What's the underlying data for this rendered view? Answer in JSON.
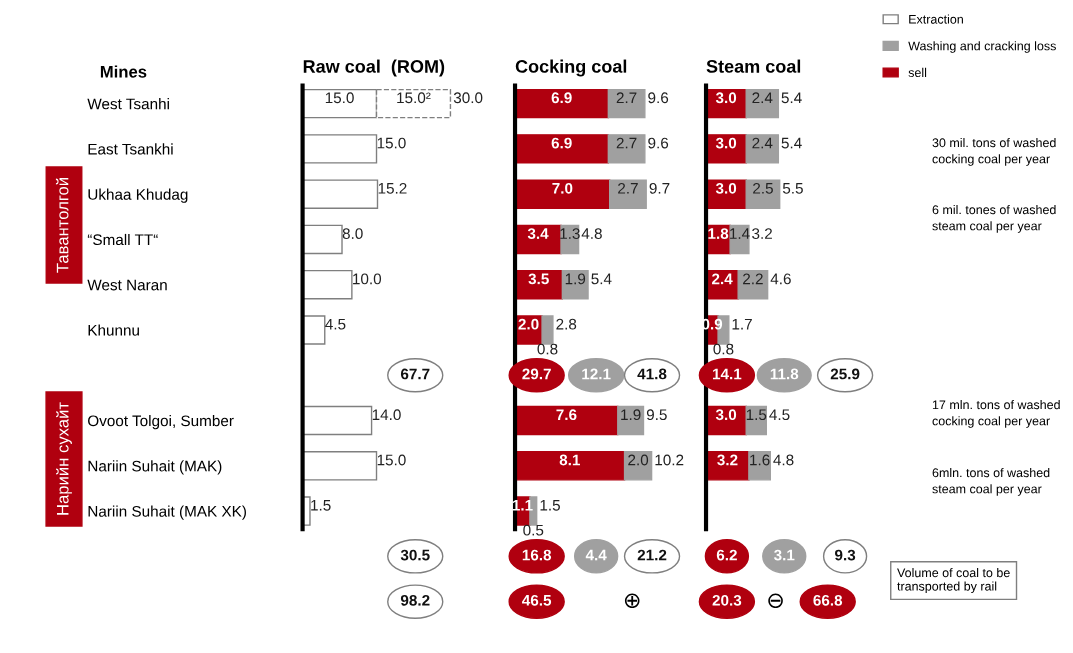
{
  "chart_data": [
    {
      "type": "bar",
      "orientation": "horizontal",
      "stacked": true,
      "title": "Raw coal  (ROM)",
      "ylabel": "Mines",
      "tick_labels": "y",
      "categories": [
        "West Tsanhi",
        "East Tsankhi",
        "Ukhaa Khudag",
        "“Small TT“",
        "West Naran",
        "Khunnu",
        null,
        "Ovoot Tolgoi, Sumber",
        "Nariin Suhait (MAK)",
        "Nariin Suhait (MAK XK)",
        null,
        null
      ],
      "series": [
        {
          "name": "Extraction",
          "color": "#ffffff",
          "values": [
            15.0,
            15.0,
            15.2,
            8.0,
            10.0,
            4.5,
            null,
            14.0,
            15.0,
            1.5,
            null,
            null
          ],
          "value_labels": [
            "15.0",
            "15.0",
            "15.2",
            "8.0",
            "10.0",
            "4.5",
            null,
            "14.0",
            "15.0",
            "1.5",
            null,
            null
          ]
        },
        {
          "color": "#ffffff",
          "line_style": "dashed",
          "values": [
            15.0,
            null,
            null,
            null,
            null,
            null,
            null,
            null,
            null,
            null,
            null,
            null
          ],
          "value_labels": [
            "15.0²",
            null,
            null,
            null,
            null,
            null,
            null,
            null,
            null,
            null,
            null,
            null
          ]
        }
      ],
      "totals": [
        "30.0",
        null,
        null,
        null,
        null,
        null,
        null,
        null,
        null,
        null,
        null,
        null
      ],
      "annotations": [
        "67.7",
        "30.5",
        "98.2"
      ]
    },
    {
      "type": "bar",
      "orientation": "horizontal",
      "stacked": true,
      "title": "Cocking coal",
      "legend": "top right",
      "series": [
        {
          "name": "sell",
          "color": "#b0000f",
          "values": [
            6.9,
            6.9,
            7.0,
            3.4,
            3.5,
            2.0,
            null,
            7.6,
            8.1,
            1.1,
            null,
            null
          ],
          "value_labels": [
            "6.9",
            "6.9",
            "7.0",
            "3.4",
            "3.5",
            "2.0",
            null,
            "7.6",
            "8.1",
            "1.1",
            null,
            null
          ]
        },
        {
          "name": "Washing and cracking loss",
          "color": "#a0a0a0",
          "values": [
            2.7,
            2.7,
            2.7,
            1.3,
            1.9,
            0.8,
            null,
            1.9,
            2.0,
            0.5,
            null,
            null
          ],
          "value_labels": [
            "2.7",
            "2.7",
            "2.7",
            "1.3",
            "1.9",
            "0.8",
            null,
            "1.9",
            "2.0",
            "0.5",
            null,
            null
          ]
        }
      ],
      "totals": [
        "9.6",
        "9.6",
        "9.7",
        "4.8",
        "5.4",
        "2.8",
        null,
        "9.5",
        "10.2",
        "1.5",
        null,
        null
      ],
      "annotations": [
        "29.7",
        "12.1",
        "41.8",
        "16.8",
        "4.4",
        "21.2",
        "46.5",
        "⊕"
      ]
    },
    {
      "type": "bar",
      "orientation": "horizontal",
      "stacked": true,
      "title": "Steam coal",
      "series": [
        {
          "color": "#b0000f",
          "values": [
            3.0,
            3.0,
            3.0,
            1.8,
            2.4,
            0.9,
            null,
            3.0,
            3.2,
            null,
            null,
            null
          ],
          "value_labels": [
            "3.0",
            "3.0",
            "3.0",
            "1.8",
            "2.4",
            "0.9",
            null,
            "3.0",
            "3.2",
            null,
            null,
            null
          ]
        },
        {
          "color": "#a0a0a0",
          "values": [
            2.4,
            2.4,
            2.5,
            1.4,
            2.2,
            0.8,
            null,
            1.5,
            1.6,
            null,
            null,
            null
          ],
          "value_labels": [
            "2.4",
            "2.4",
            "2.5",
            "1.4",
            "2.2",
            "0.8",
            null,
            "1.5",
            "1.6",
            null,
            null,
            null
          ]
        }
      ],
      "totals": [
        "5.4",
        "5.4",
        "5.5",
        "3.2",
        "4.6",
        "1.7",
        null,
        "4.5",
        "4.8",
        null,
        null,
        null
      ],
      "annotations": [
        "14.1",
        "11.8",
        "25.9",
        "6.2",
        "3.1",
        "9.3",
        "20.3",
        "⊖",
        "66.8"
      ]
    },
    {
      "type": "other",
      "annotations": [
        "Тавантолгой",
        "Нарийн сухайт",
        "30 mil. tons of washed cocking coal per year",
        "6 mil. tones of washed steam coal per year",
        "17 mln. tons of washed cocking coal per year",
        "6mln. tons of washed steam coal per year",
        "Volume of coal to be transported by rail"
      ]
    }
  ]
}
